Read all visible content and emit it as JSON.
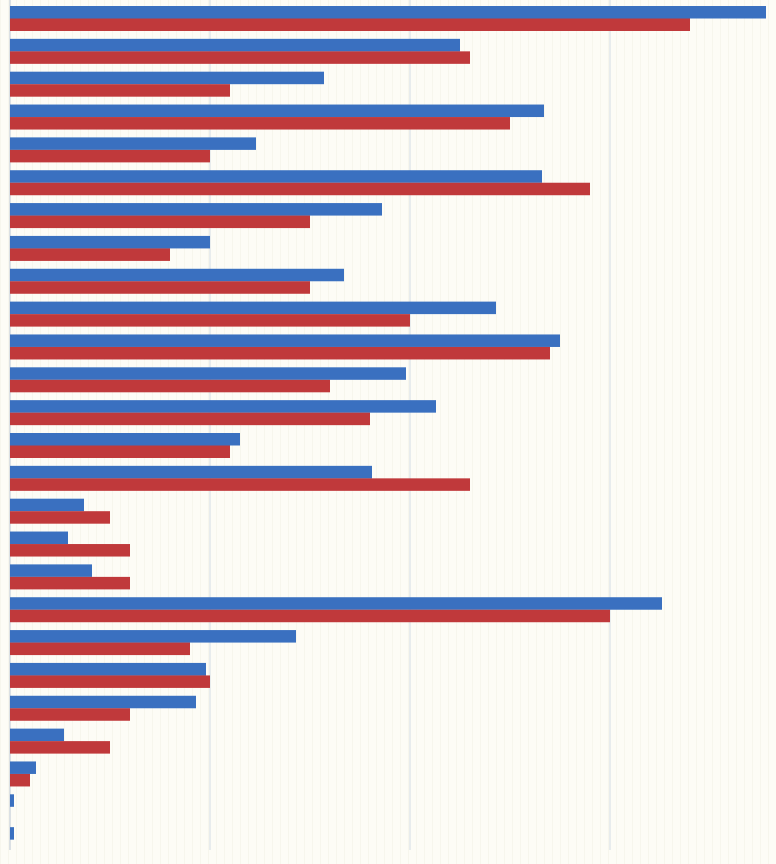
{
  "chart_data": {
    "type": "hbar",
    "categories": [
      null,
      null,
      null,
      null,
      null,
      null,
      null,
      null,
      null,
      null,
      null,
      null,
      null,
      null,
      null,
      null,
      null,
      null,
      null,
      null,
      null,
      null,
      null,
      null,
      null,
      null
    ],
    "series": [
      {
        "color": "#3a70c0",
        "values": [
          37.8,
          22.5,
          15.7,
          26.7,
          12.3,
          26.6,
          18.6,
          10,
          16.7,
          24.3,
          27.5,
          19.8,
          21.3,
          11.5,
          18.1,
          3.7,
          2.9,
          4.1,
          32.6,
          14.3,
          9.8,
          9.3,
          2.7,
          1.3,
          0.2,
          0.2
        ]
      },
      {
        "color": "#c0393b",
        "values": [
          34,
          23,
          11,
          25,
          10,
          29,
          15,
          8,
          15,
          20,
          27,
          16,
          18,
          11,
          23,
          5,
          6,
          6,
          30,
          9,
          10,
          6,
          5,
          1,
          0,
          0
        ]
      }
    ],
    "xlim": [
      0,
      38
    ],
    "xticks": [
      0,
      10,
      20,
      30
    ],
    "grid": true
  }
}
